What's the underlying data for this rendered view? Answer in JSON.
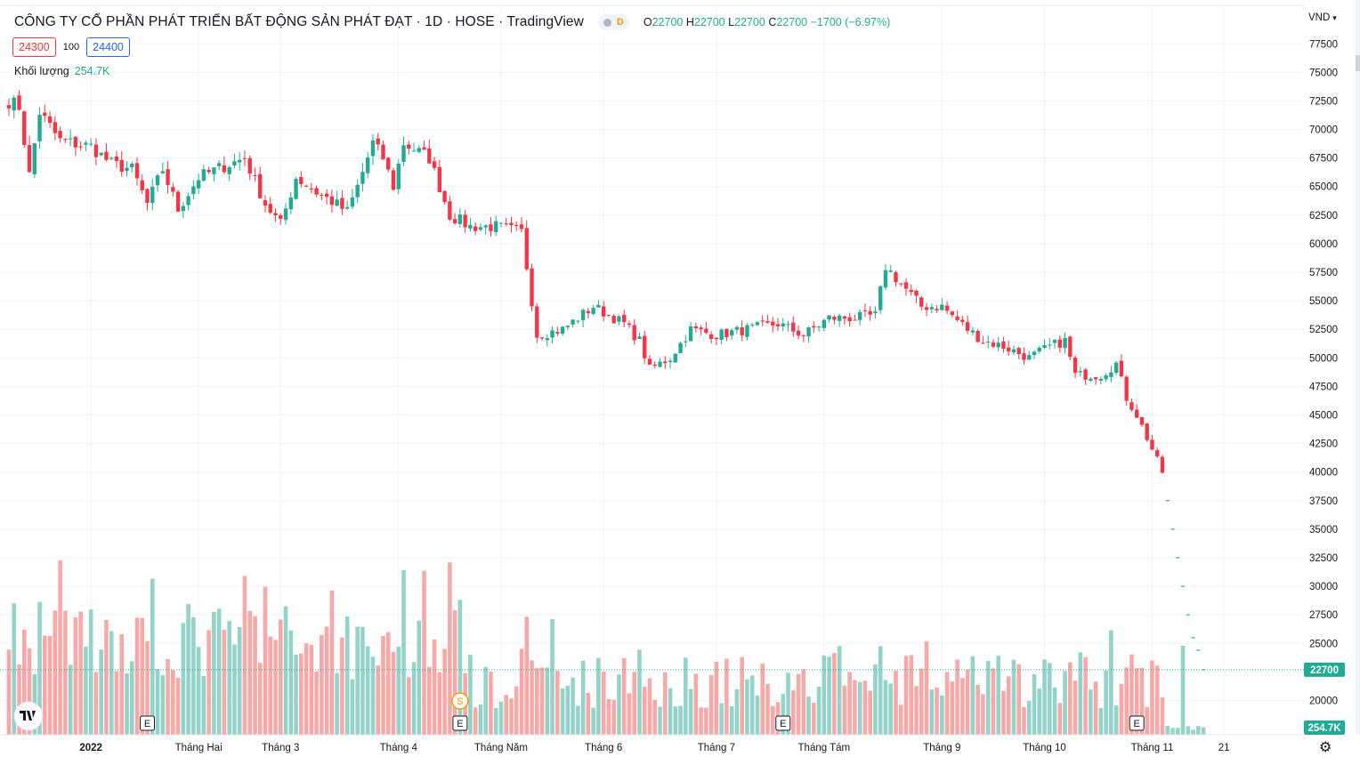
{
  "header": {
    "title": "CÔNG TY CỔ PHẦN PHÁT TRIỂN BẤT ĐỘNG SẢN PHÁT ĐẠT · 1D · HOSE · TradingView",
    "interval_badge": "D",
    "ohlc": {
      "open_label": "O",
      "open": "22700",
      "high_label": "H",
      "high": "22700",
      "low_label": "L",
      "low": "22700",
      "close_label": "C",
      "close": "22700",
      "change": "−1700 (−6.97%)"
    },
    "bid": "24300",
    "quantity": "100",
    "ask": "24400",
    "volume_label": "Khối lượng",
    "volume_value": "254.7K",
    "currency": "VND"
  },
  "colors": {
    "up": "#22ab94",
    "down": "#f23645",
    "up_volume": "#94d3c9",
    "down_volume": "#f7a9a7",
    "grid": "#f0f3fa",
    "axis_text": "#131722"
  },
  "chart_data": {
    "type": "candlestick",
    "title": "CÔNG TY CỔ PHẦN PHÁT TRIỂN BẤT ĐỘNG SẢN PHÁT ĐẠT · 1D · HOSE · TradingView",
    "currency": "VND",
    "y_ticks": [
      20000,
      22500,
      25000,
      27500,
      30000,
      32500,
      35000,
      37500,
      40000,
      42500,
      45000,
      47500,
      50000,
      52500,
      55000,
      57500,
      60000,
      62500,
      65000,
      67500,
      70000,
      72500,
      75000,
      77500
    ],
    "ylim": [
      17000,
      79000
    ],
    "x_labels": [
      {
        "label": "2022",
        "bar": 16,
        "bold": true
      },
      {
        "label": "Tháng Hai",
        "bar": 37
      },
      {
        "label": "Tháng 3",
        "bar": 53
      },
      {
        "label": "Tháng 4",
        "bar": 76
      },
      {
        "label": "Tháng Năm",
        "bar": 96
      },
      {
        "label": "Tháng 6",
        "bar": 116
      },
      {
        "label": "Tháng 7",
        "bar": 138
      },
      {
        "label": "Tháng Tám",
        "bar": 159
      },
      {
        "label": "Tháng 9",
        "bar": 182
      },
      {
        "label": "Tháng 10",
        "bar": 202
      },
      {
        "label": "Tháng 11",
        "bar": 223
      },
      {
        "label": "21",
        "bar": 237
      }
    ],
    "last_price": 22700,
    "last_price_label": "22700",
    "last_volume_label": "254.7K",
    "event_markers": [
      {
        "label": "E",
        "bar": 27
      },
      {
        "label": "E",
        "bar": 88
      },
      {
        "label": "S",
        "bar": 88
      },
      {
        "label": "E",
        "bar": 151
      },
      {
        "label": "E",
        "bar": 220
      }
    ],
    "waypoints": [
      [
        0,
        72500
      ],
      [
        2,
        72000
      ],
      [
        4,
        66000
      ],
      [
        6,
        71500
      ],
      [
        10,
        69000
      ],
      [
        16,
        68500
      ],
      [
        20,
        67000
      ],
      [
        24,
        66500
      ],
      [
        27,
        63500
      ],
      [
        30,
        66500
      ],
      [
        33,
        63000
      ],
      [
        37,
        65800
      ],
      [
        42,
        66800
      ],
      [
        46,
        67500
      ],
      [
        50,
        63500
      ],
      [
        53,
        61700
      ],
      [
        56,
        65800
      ],
      [
        60,
        64500
      ],
      [
        63,
        63700
      ],
      [
        66,
        62800
      ],
      [
        68,
        65000
      ],
      [
        71,
        68800
      ],
      [
        73,
        67500
      ],
      [
        75,
        65000
      ],
      [
        77,
        68800
      ],
      [
        82,
        67500
      ],
      [
        86,
        62500
      ],
      [
        90,
        61500
      ],
      [
        95,
        61500
      ],
      [
        100,
        61000
      ],
      [
        103,
        52000
      ],
      [
        108,
        52500
      ],
      [
        114,
        54500
      ],
      [
        120,
        53000
      ],
      [
        123,
        51500
      ],
      [
        125,
        49000
      ],
      [
        129,
        50000
      ],
      [
        133,
        52500
      ],
      [
        138,
        52000
      ],
      [
        144,
        52500
      ],
      [
        150,
        53000
      ],
      [
        155,
        52000
      ],
      [
        160,
        53500
      ],
      [
        165,
        53500
      ],
      [
        169,
        53700
      ],
      [
        171,
        58000
      ],
      [
        173,
        57000
      ],
      [
        178,
        54500
      ],
      [
        182,
        54500
      ],
      [
        187,
        52500
      ],
      [
        190,
        51500
      ],
      [
        194,
        51000
      ],
      [
        199,
        50000
      ],
      [
        203,
        51000
      ],
      [
        206,
        51500
      ],
      [
        208,
        48500
      ],
      [
        213,
        48500
      ],
      [
        216,
        49500
      ],
      [
        218,
        46500
      ],
      [
        220,
        45000
      ],
      [
        223,
        42000
      ],
      [
        225,
        40000
      ],
      [
        226,
        37500
      ],
      [
        227,
        35000
      ],
      [
        228,
        32500
      ],
      [
        229,
        30000
      ],
      [
        230,
        27500
      ],
      [
        231,
        25500
      ],
      [
        232,
        24400
      ],
      [
        233,
        22700
      ]
    ],
    "candle_count": 234,
    "post_limit_start": 226
  }
}
